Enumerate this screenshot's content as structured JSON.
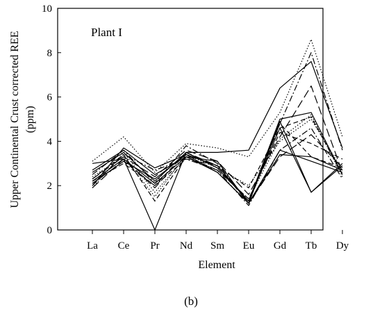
{
  "chart_data": {
    "type": "line",
    "title": "Plant I",
    "xlabel": "Element",
    "ylabel_line1": "Upper Continental Crust corrected REE",
    "ylabel_line2": "(ppm)",
    "categories": [
      "La",
      "Ce",
      "Pr",
      "Nd",
      "Sm",
      "Eu",
      "Gd",
      "Tb",
      "Dy"
    ],
    "ylim": [
      0,
      10
    ],
    "yticks": [
      0,
      2,
      4,
      6,
      8,
      10
    ],
    "grid": false,
    "legend": "none",
    "series": [
      {
        "style": "solid",
        "values": [
          3.0,
          3.2,
          0.0,
          3.5,
          3.5,
          3.6,
          6.4,
          7.6,
          3.7
        ]
      },
      {
        "style": "dotted",
        "values": [
          3.1,
          4.2,
          2.6,
          3.9,
          3.7,
          3.3,
          5.3,
          8.6,
          4.2
        ]
      },
      {
        "style": "dashdot",
        "values": [
          2.5,
          3.6,
          2.1,
          3.8,
          3.0,
          1.2,
          4.8,
          8.0,
          3.6
        ]
      },
      {
        "style": "longdash",
        "values": [
          2.3,
          3.3,
          2.4,
          3.6,
          3.1,
          1.6,
          4.2,
          6.5,
          2.6
        ]
      },
      {
        "style": "solid",
        "values": [
          2.6,
          3.5,
          2.2,
          3.5,
          2.8,
          1.3,
          5.0,
          5.3,
          2.5
        ]
      },
      {
        "style": "dashed",
        "values": [
          2.2,
          3.0,
          2.0,
          3.2,
          2.9,
          1.9,
          4.6,
          5.1,
          2.5
        ]
      },
      {
        "style": "dotted",
        "values": [
          2.4,
          3.3,
          1.5,
          3.4,
          2.8,
          2.0,
          4.0,
          5.0,
          2.7
        ]
      },
      {
        "style": "dashdot",
        "values": [
          2.0,
          3.4,
          2.7,
          3.2,
          2.7,
          1.1,
          3.6,
          4.6,
          2.3
        ]
      },
      {
        "style": "solid",
        "values": [
          2.7,
          3.6,
          2.5,
          3.3,
          2.6,
          1.2,
          4.9,
          1.7,
          3.0
        ]
      },
      {
        "style": "longdash",
        "values": [
          1.9,
          3.2,
          1.9,
          3.5,
          2.9,
          1.2,
          3.3,
          4.3,
          2.8
        ]
      },
      {
        "style": "dashed",
        "values": [
          2.3,
          3.4,
          1.3,
          3.3,
          2.7,
          1.4,
          4.4,
          3.9,
          3.2
        ]
      },
      {
        "style": "solid",
        "values": [
          2.1,
          3.1,
          2.3,
          3.4,
          2.6,
          1.2,
          3.6,
          3.1,
          2.6
        ]
      },
      {
        "style": "solid",
        "values": [
          2.0,
          3.7,
          2.8,
          3.4,
          2.9,
          1.3,
          4.6,
          1.7,
          2.9
        ]
      },
      {
        "style": "dashed",
        "values": [
          2.1,
          3.1,
          2.0,
          3.5,
          2.8,
          1.3,
          4.8,
          3.3,
          2.8
        ]
      },
      {
        "style": "solid",
        "values": [
          2.2,
          3.2,
          2.1,
          3.3,
          3.1,
          1.2,
          3.4,
          3.3,
          2.7
        ]
      },
      {
        "style": "dotted",
        "values": [
          1.9,
          3.5,
          1.7,
          3.3,
          2.7,
          1.4,
          4.1,
          5.2,
          2.4
        ]
      }
    ]
  },
  "caption": "(b)"
}
